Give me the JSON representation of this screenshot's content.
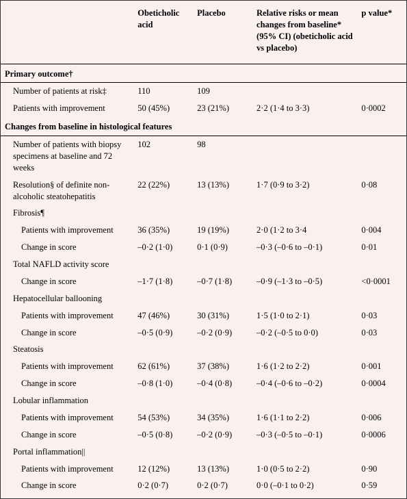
{
  "table": {
    "background_color": "#faf0f0",
    "border_color": "#000000",
    "font_family": "Georgia, serif",
    "header_fontsize": 12.5,
    "cell_fontsize": 12.5,
    "columns": {
      "stub": "",
      "oca": "Obeticholic acid",
      "placebo": "Placebo",
      "rr": "Relative risks or mean changes from baseline* (95% CI) (obeticholic acid vs placebo)",
      "pvalue": "p value*"
    },
    "sections": [
      {
        "title": "Primary outcome†",
        "rows": [
          {
            "label": "Number of patients at risk‡",
            "oca": "110",
            "placebo": "109",
            "rr": "",
            "p": "",
            "indent": 1
          },
          {
            "label": "Patients with improvement",
            "oca": "50 (45%)",
            "placebo": "23 (21%)",
            "rr": "2·2 (1·4 to 3·3)",
            "p": "0·0002",
            "indent": 1
          }
        ]
      },
      {
        "title": "Changes from baseline in histological features",
        "rows": [
          {
            "label": "Number of patients with biopsy specimens at baseline and 72 weeks",
            "oca": "102",
            "placebo": "98",
            "rr": "",
            "p": "",
            "indent": 1
          },
          {
            "label": "Resolution§ of definite non-alcoholic steatohepatitis",
            "oca": "22 (22%)",
            "placebo": "13 (13%)",
            "rr": "1·7 (0·9 to 3·2)",
            "p": "0·08",
            "indent": 1
          },
          {
            "label": "Fibrosis¶",
            "oca": "",
            "placebo": "",
            "rr": "",
            "p": "",
            "indent": 1
          },
          {
            "label": "Patients with improvement",
            "oca": "36 (35%)",
            "placebo": "19 (19%)",
            "rr": "2·0 (1·2 to 3·4",
            "p": "0·004",
            "indent": 2
          },
          {
            "label": "Change in score",
            "oca": "–0·2 (1·0)",
            "placebo": "0·1 (0·9)",
            "rr": "–0·3 (–0·6 to –0·1)",
            "p": "0·01",
            "indent": 2
          },
          {
            "label": "Total NAFLD activity score",
            "oca": "",
            "placebo": "",
            "rr": "",
            "p": "",
            "indent": 1
          },
          {
            "label": "Change in score",
            "oca": "–1·7 (1·8)",
            "placebo": "–0·7 (1·8)",
            "rr": "–0·9 (–1·3 to –0·5)",
            "p": "<0·0001",
            "indent": 2
          },
          {
            "label": "Hepatocellular ballooning",
            "oca": "",
            "placebo": "",
            "rr": "",
            "p": "",
            "indent": 1
          },
          {
            "label": "Patients with improvement",
            "oca": "47 (46%)",
            "placebo": "30 (31%)",
            "rr": "1·5 (1·0 to 2·1)",
            "p": "0·03",
            "indent": 2
          },
          {
            "label": "Change in score",
            "oca": "–0·5 (0·9)",
            "placebo": "–0·2 (0·9)",
            "rr": "–0·2 (–0·5 to 0·0)",
            "p": "0·03",
            "indent": 2
          },
          {
            "label": "Steatosis",
            "oca": "",
            "placebo": "",
            "rr": "",
            "p": "",
            "indent": 1
          },
          {
            "label": "Patients with improvement",
            "oca": "62 (61%)",
            "placebo": "37 (38%)",
            "rr": "1·6 (1·2 to 2·2)",
            "p": "0·001",
            "indent": 2
          },
          {
            "label": "Change in score",
            "oca": "–0·8 (1·0)",
            "placebo": "–0·4 (0·8)",
            "rr": "–0·4 (–0·6 to –0·2)",
            "p": "0·0004",
            "indent": 2
          },
          {
            "label": "Lobular inflammation",
            "oca": "",
            "placebo": "",
            "rr": "",
            "p": "",
            "indent": 1
          },
          {
            "label": "Patients with improvement",
            "oca": "54 (53%)",
            "placebo": "34 (35%)",
            "rr": "1·6 (1·1 to 2·2)",
            "p": "0·006",
            "indent": 2
          },
          {
            "label": "Change in score",
            "oca": "–0·5 (0·8)",
            "placebo": "–0·2 (0·9)",
            "rr": "–0·3 (–0·5 to –0·1)",
            "p": "0·0006",
            "indent": 2
          },
          {
            "label": "Portal inflammation||",
            "oca": "",
            "placebo": "",
            "rr": "",
            "p": "",
            "indent": 1
          },
          {
            "label": "Patients with improvement",
            "oca": "12 (12%)",
            "placebo": "13 (13%)",
            "rr": "1·0 (0·5 to 2·2)",
            "p": "0·90",
            "indent": 2
          },
          {
            "label": "Change in score",
            "oca": "0·2 (0·7)",
            "placebo": "0·2 (0·7)",
            "rr": "0·0 (–0·1 to 0·2)",
            "p": "0·59",
            "indent": 2
          }
        ]
      }
    ]
  }
}
